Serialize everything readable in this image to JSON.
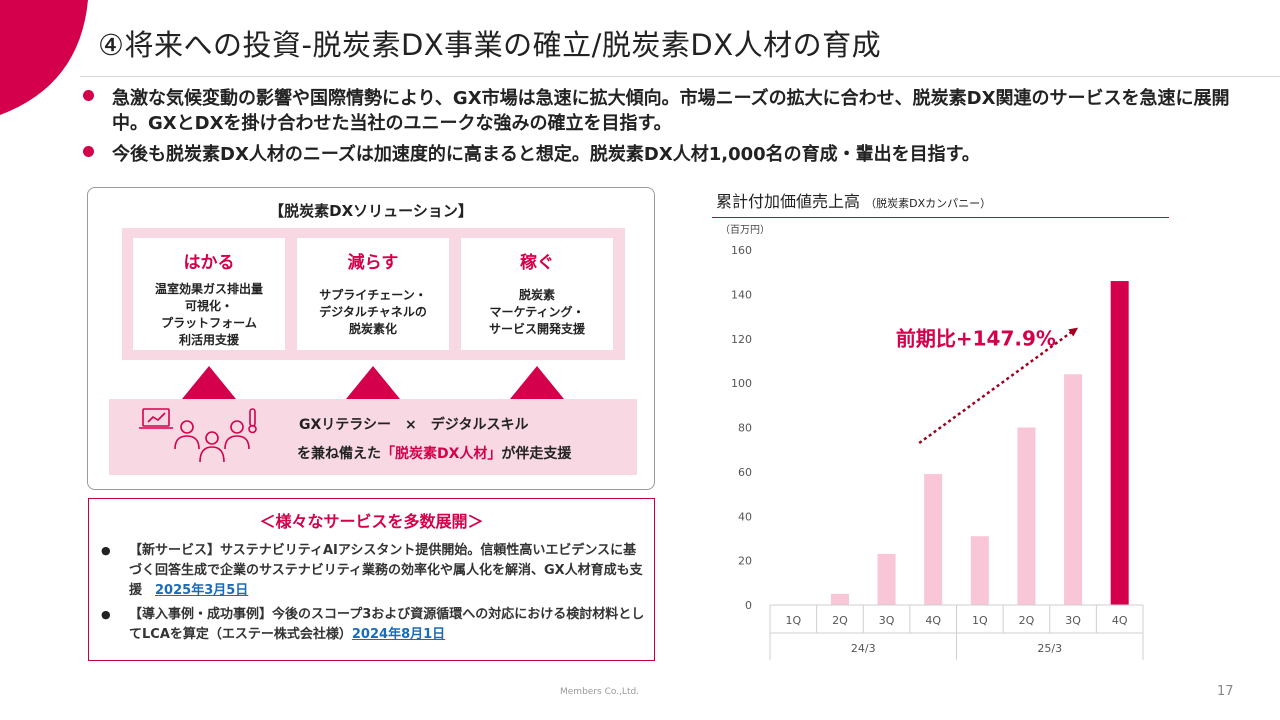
{
  "slide": {
    "title": "④将来への投資-脱炭素DX事業の確立/脱炭素DX人材の育成",
    "bullets": [
      "急激な気候変動の影響や国際情勢により、GX市場は急速に拡大傾向。市場ニーズの拡大に合わせ、脱炭素DX関連のサービスを急速に展開中。GXとDXを掛け合わせた当社のユニークな強みの確立を目指す。",
      "今後も脱炭素DX人材のニーズは加速度的に高まると想定。脱炭素DX人材1,000名の育成・輩出を目指す。"
    ],
    "accent_color": "#d4004c",
    "footer": "Members Co.,Ltd.",
    "page_number": "17"
  },
  "solution": {
    "title": "【脱炭素DXソリューション】",
    "cards": [
      {
        "heading": "はかる",
        "lines": [
          "温室効果ガス排出量",
          "可視化・",
          "プラットフォーム",
          "利活用支援"
        ]
      },
      {
        "heading": "減らす",
        "lines": [
          "サプライチェーン・",
          "デジタルチャネルの",
          "脱炭素化"
        ]
      },
      {
        "heading": "稼ぐ",
        "lines": [
          "脱炭素",
          "マーケティング・",
          "サービス開発支援"
        ]
      }
    ],
    "literacy_line": "GXリテラシー　×　デジタルスキル",
    "support_prefix": "を兼ね備えた",
    "support_highlight": "「脱炭素DX人材」",
    "support_suffix": "が伴走支援",
    "icon": "people-with-computer-icon"
  },
  "services": {
    "title": "＜様々なサービスを多数展開＞",
    "items": [
      {
        "text": "【新サービス】サステナビリティAIアシスタント提供開始。信頼性高いエビデンスに基づく回答生成で企業のサステナビリティ業務の効率化や属人化を解消、GX人材育成も支援　",
        "link": "2025年3月5日"
      },
      {
        "text": "【導入事例・成功事例】今後のスコープ3および資源循環への対応における検討材料としてLCAを算定（エステー株式会社様）",
        "link": "2024年8月1日"
      }
    ]
  },
  "chart_data": {
    "type": "bar",
    "title": "累計付加価値売上高",
    "subtitle": "（脱炭素DXカンパニー）",
    "unit_label": "（百万円）",
    "categories": [
      "1Q",
      "2Q",
      "3Q",
      "4Q",
      "1Q",
      "2Q",
      "3Q",
      "4Q"
    ],
    "groups": [
      {
        "label": "24/3",
        "span": 4
      },
      {
        "label": "25/3",
        "span": 4
      }
    ],
    "values": [
      0,
      5,
      23,
      59,
      31,
      80,
      104,
      146
    ],
    "highlight_index": 7,
    "ylim": [
      0,
      160
    ],
    "yticks": [
      0,
      20,
      40,
      60,
      80,
      100,
      120,
      140,
      160
    ],
    "annotation": "前期比+147.9%",
    "bar_color": "#f8c6d6",
    "highlight_color": "#d4004c",
    "grid": false
  }
}
